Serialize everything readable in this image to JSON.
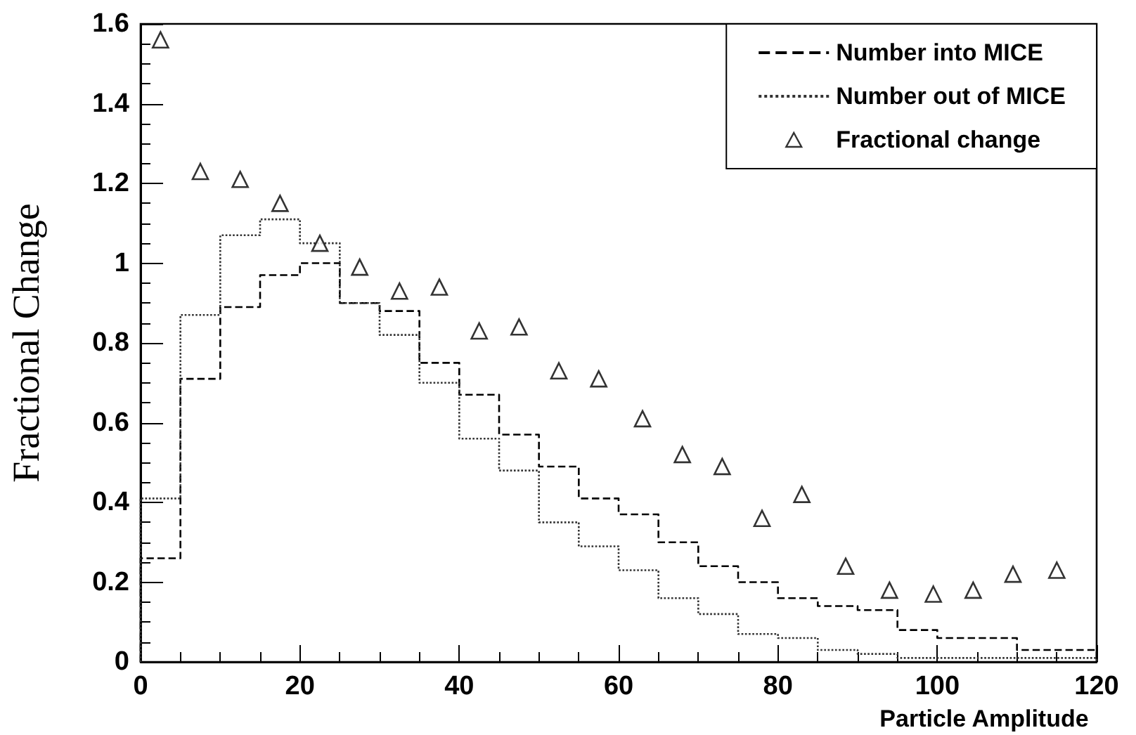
{
  "chart_data": {
    "type": "histogram",
    "xlabel": "Particle Amplitude",
    "ylabel": "Fractional Change",
    "bins": [
      0,
      5,
      10,
      15,
      20,
      25,
      30,
      35,
      40,
      45,
      50,
      55,
      60,
      65,
      70,
      75,
      80,
      85,
      90,
      95,
      100,
      105,
      110,
      115,
      120
    ],
    "series": [
      {
        "name": "Number into MICE",
        "color": "#000000",
        "line_style": "dashed",
        "values": [
          0.26,
          0.71,
          0.89,
          0.97,
          1.0,
          0.9,
          0.88,
          0.75,
          0.67,
          0.57,
          0.49,
          0.41,
          0.37,
          0.3,
          0.24,
          0.2,
          0.16,
          0.14,
          0.13,
          0.08,
          0.06,
          0.06,
          0.03,
          0.03
        ]
      },
      {
        "name": "Number out of MICE",
        "color": "#333333",
        "line_style": "dotted",
        "values": [
          0.41,
          0.87,
          1.07,
          1.11,
          1.05,
          0.9,
          0.82,
          0.7,
          0.56,
          0.48,
          0.35,
          0.29,
          0.23,
          0.16,
          0.12,
          0.07,
          0.06,
          0.03,
          0.02,
          0.01,
          0.01,
          0.01,
          0.01,
          0.01
        ]
      },
      {
        "name": "Fractional change",
        "type": "scatter",
        "color": "#000000",
        "marker": "triangle",
        "x": [
          2.5,
          7.5,
          12.5,
          17.5,
          22.5,
          27.5,
          32.5,
          37.5,
          42.5,
          47.5,
          52.5,
          57.5,
          63,
          68,
          73,
          78,
          83,
          88.5,
          94,
          99.5,
          104.5,
          109.5,
          115
        ],
        "values": [
          1.56,
          1.23,
          1.21,
          1.15,
          1.05,
          0.99,
          0.93,
          0.94,
          0.83,
          0.84,
          0.73,
          0.71,
          0.61,
          0.52,
          0.49,
          0.36,
          0.42,
          0.24,
          0.18,
          0.17,
          0.18,
          0.22,
          0.23
        ]
      }
    ],
    "xlim": [
      0,
      120
    ],
    "xticks": [
      0,
      20,
      40,
      60,
      80,
      100,
      120
    ],
    "ylim": [
      0,
      1.6
    ],
    "yticks": [
      0,
      0.2,
      0.4,
      0.6,
      0.8,
      1,
      1.2,
      1.4,
      1.6
    ],
    "legend": "top right",
    "grid": false
  }
}
